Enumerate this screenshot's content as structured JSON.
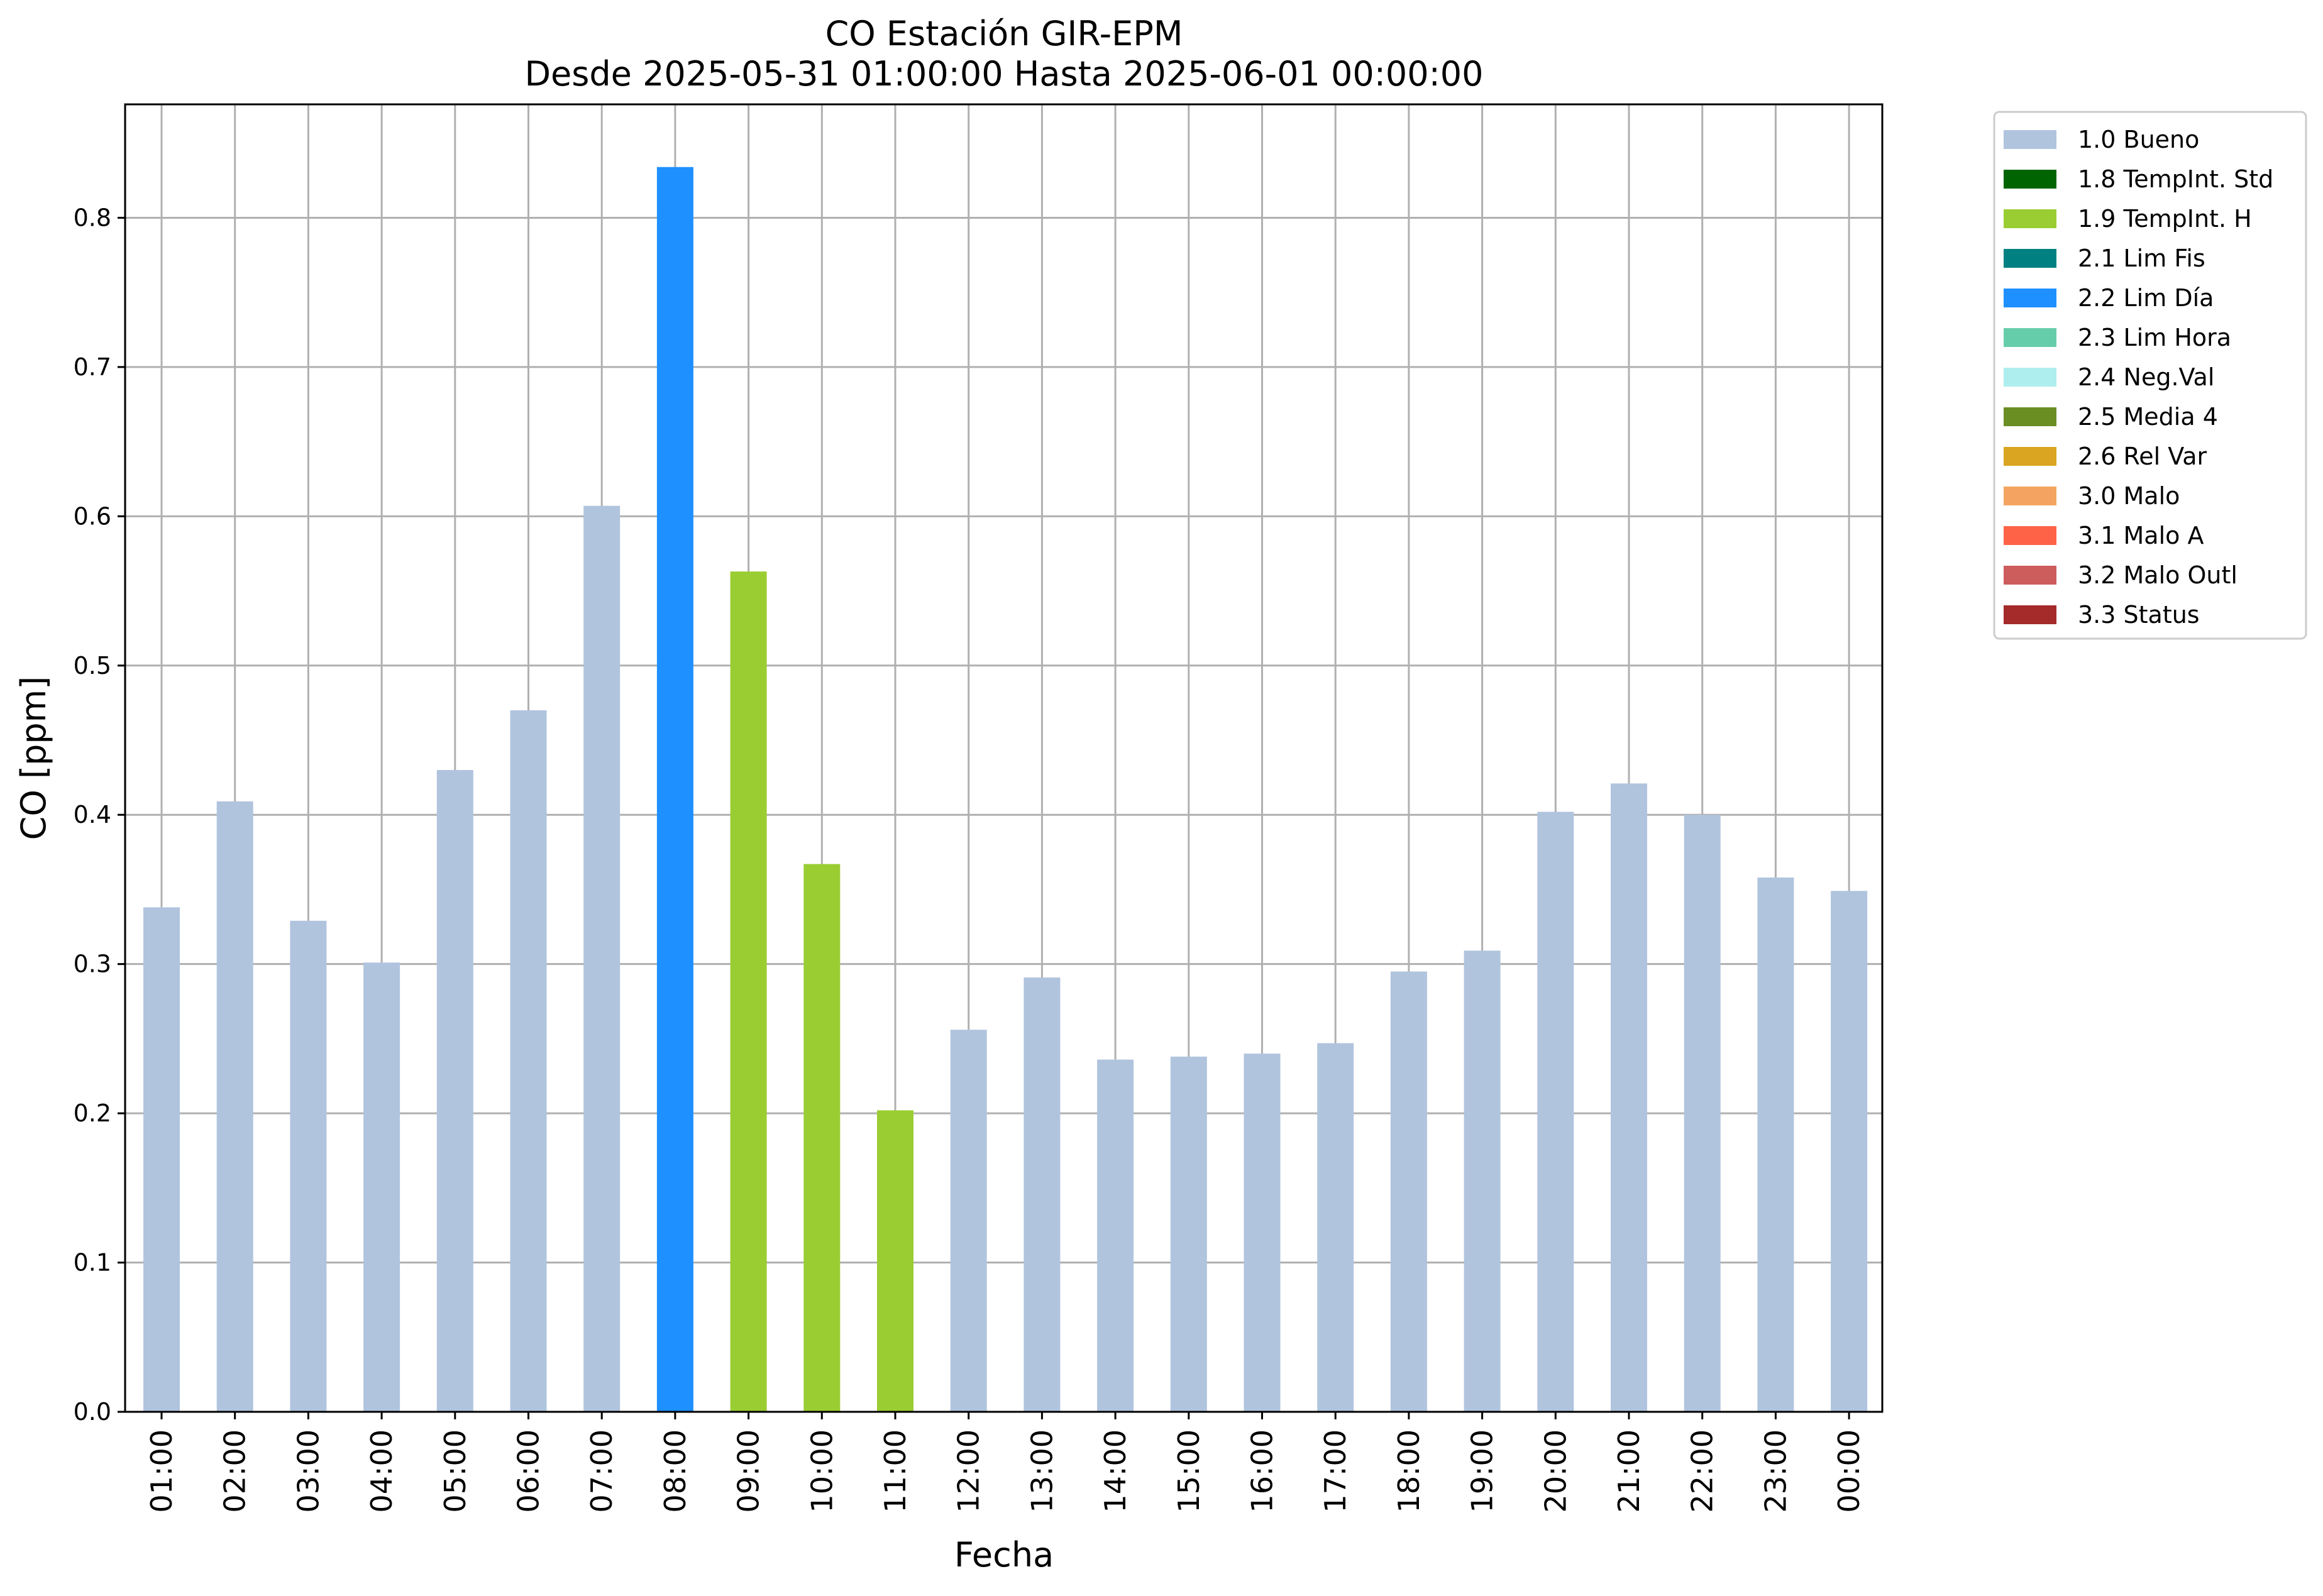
{
  "chart_data": {
    "type": "bar",
    "title": "CO Estación GIR-EPM",
    "subtitle": "Desde 2025-05-31 01:00:00 Hasta 2025-06-01 00:00:00",
    "xlabel": "Fecha",
    "ylabel": "CO [ppm]",
    "ylim": [
      0,
      0.876
    ],
    "yticks": [
      0.0,
      0.1,
      0.2,
      0.3,
      0.4,
      0.5,
      0.6,
      0.7,
      0.8
    ],
    "ytick_labels": [
      "0.0",
      "0.1",
      "0.2",
      "0.3",
      "0.4",
      "0.5",
      "0.6",
      "0.7",
      "0.8"
    ],
    "grid": true,
    "legend_position": "outside-top-right",
    "categories": [
      "01:00",
      "02:00",
      "03:00",
      "04:00",
      "05:00",
      "06:00",
      "07:00",
      "08:00",
      "09:00",
      "10:00",
      "11:00",
      "12:00",
      "13:00",
      "14:00",
      "15:00",
      "16:00",
      "17:00",
      "18:00",
      "19:00",
      "20:00",
      "21:00",
      "22:00",
      "23:00",
      "00:00"
    ],
    "values": [
      0.338,
      0.409,
      0.329,
      0.301,
      0.43,
      0.47,
      0.607,
      0.834,
      0.563,
      0.367,
      0.202,
      0.256,
      0.291,
      0.236,
      0.238,
      0.24,
      0.247,
      0.295,
      0.309,
      0.402,
      0.421,
      0.4,
      0.358,
      0.349
    ],
    "flags": [
      "1.0 Bueno",
      "1.0 Bueno",
      "1.0 Bueno",
      "1.0 Bueno",
      "1.0 Bueno",
      "1.0 Bueno",
      "1.0 Bueno",
      "2.2 Lim Día",
      "1.9 TempInt. H",
      "1.9 TempInt. H",
      "1.9 TempInt. H",
      "1.0 Bueno",
      "1.0 Bueno",
      "1.0 Bueno",
      "1.0 Bueno",
      "1.0 Bueno",
      "1.0 Bueno",
      "1.0 Bueno",
      "1.0 Bueno",
      "1.0 Bueno",
      "1.0 Bueno",
      "1.0 Bueno",
      "1.0 Bueno",
      "1.0 Bueno"
    ],
    "legend": [
      {
        "label": "1.0 Bueno",
        "color": "#b0c4de"
      },
      {
        "label": "1.8 TempInt. Std",
        "color": "#006400"
      },
      {
        "label": "1.9 TempInt. H",
        "color": "#9acd32"
      },
      {
        "label": "2.1 Lim Fis",
        "color": "#008080"
      },
      {
        "label": "2.2 Lim Día",
        "color": "#1e90ff"
      },
      {
        "label": "2.3 Lim Hora",
        "color": "#66cdaa"
      },
      {
        "label": "2.4 Neg.Val",
        "color": "#afeeee"
      },
      {
        "label": "2.5 Media 4",
        "color": "#6b8e23"
      },
      {
        "label": "2.6 Rel Var",
        "color": "#daa520"
      },
      {
        "label": "3.0 Malo",
        "color": "#f4a460"
      },
      {
        "label": "3.1 Malo A",
        "color": "#ff6347"
      },
      {
        "label": "3.2 Malo Outl",
        "color": "#cd5c5c"
      },
      {
        "label": "3.3 Status",
        "color": "#a52a2a"
      }
    ]
  }
}
